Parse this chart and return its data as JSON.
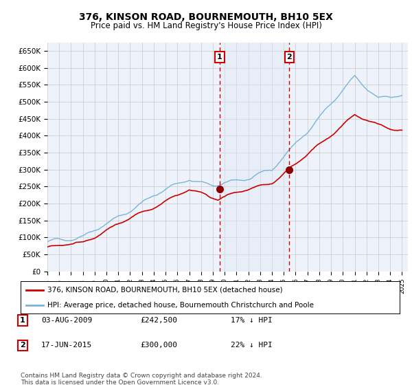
{
  "title": "376, KINSON ROAD, BOURNEMOUTH, BH10 5EX",
  "subtitle": "Price paid vs. HM Land Registry's House Price Index (HPI)",
  "ylim": [
    0,
    675000
  ],
  "xlim_start": 1995.0,
  "xlim_end": 2025.5,
  "sale1_date": 2009.58,
  "sale1_price": 242500,
  "sale2_date": 2015.46,
  "sale2_price": 300000,
  "legend_line1": "376, KINSON ROAD, BOURNEMOUTH, BH10 5EX (detached house)",
  "legend_line2": "HPI: Average price, detached house, Bournemouth Christchurch and Poole",
  "footer": "Contains HM Land Registry data © Crown copyright and database right 2024.\nThis data is licensed under the Open Government Licence v3.0.",
  "hpi_color": "#7ab4d8",
  "sale_color": "#cc0000",
  "background_plot": "#eef2fa",
  "grid_color": "#c8c8c8",
  "shade_color": "#dce8f5"
}
